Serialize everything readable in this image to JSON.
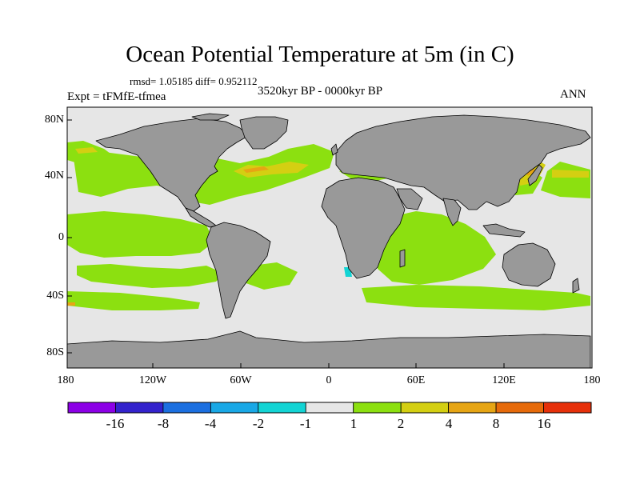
{
  "title": "Ocean Potential Temperature at 5m (in C)",
  "stats_text": "rmsd= 1.05185 diff= 0.952112",
  "experiment_label": "Expt = tFMfE-tfmea",
  "period_label": "3520kyr BP - 0000kyr BP",
  "season_label": "ANN",
  "y_axis": {
    "tick_labels": [
      "80N",
      "40N",
      "0",
      "40S",
      "80S"
    ]
  },
  "x_axis": {
    "tick_labels": [
      "180",
      "120W",
      "60W",
      "0",
      "60E",
      "120E",
      "180"
    ]
  },
  "colorbar": {
    "colors": [
      "#8c00e6",
      "#3322cc",
      "#1b6fe0",
      "#19a8e6",
      "#13d4d4",
      "#e6e6e6",
      "#8ce010",
      "#d4cf12",
      "#e6a514",
      "#e66a0a",
      "#e6300a"
    ],
    "labels": [
      "-16",
      "-8",
      "-4",
      "-2",
      "-1",
      "1",
      "2",
      "4",
      "8",
      "16"
    ]
  },
  "map_colors": {
    "land": "#999999",
    "neutral": "#e6e6e6",
    "positive": "#8ce010",
    "warm": "#d4cf12",
    "orange": "#e6a514",
    "cool": "#13d4d4"
  }
}
